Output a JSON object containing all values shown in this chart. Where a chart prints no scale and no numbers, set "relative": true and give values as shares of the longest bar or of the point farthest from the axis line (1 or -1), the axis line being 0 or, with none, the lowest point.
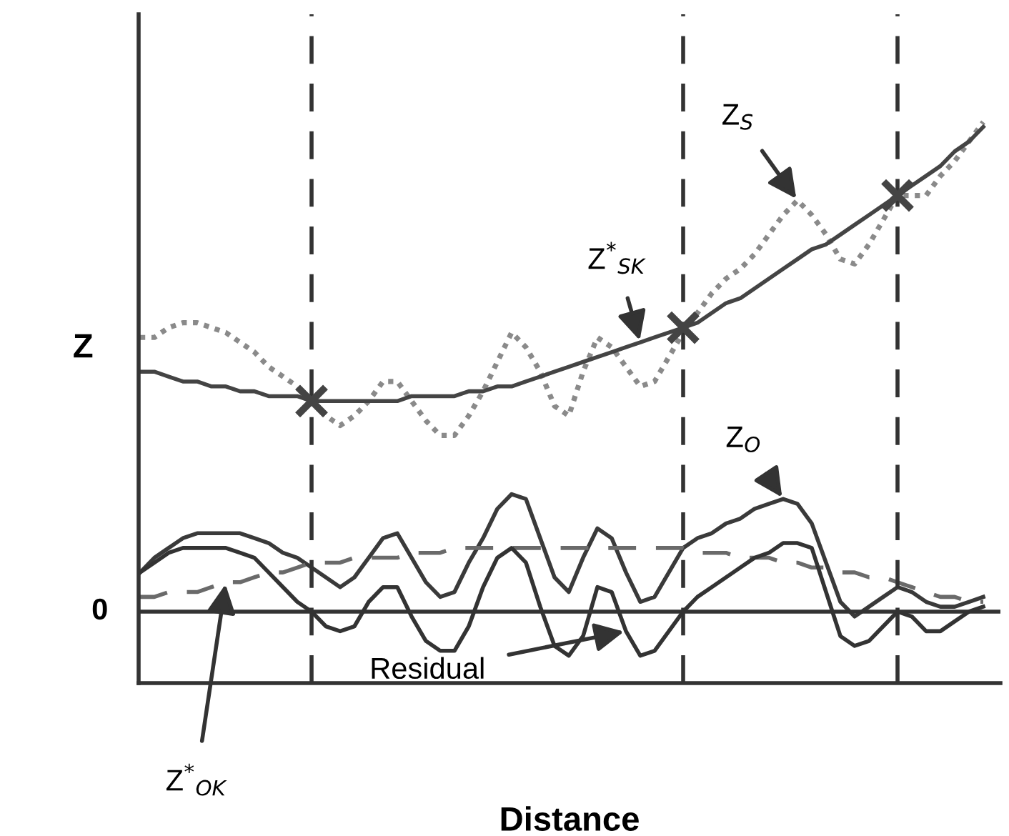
{
  "chart_data": {
    "type": "line",
    "relative": true,
    "xlabel": "Distance",
    "ylabel": "Z",
    "grid": "x",
    "categories": [
      null,
      null,
      null,
      null,
      null,
      null,
      null,
      null,
      null,
      null,
      null,
      null,
      null,
      null,
      null,
      null,
      null,
      null,
      null,
      null,
      null,
      null,
      null,
      null,
      null,
      null,
      null,
      null,
      null,
      null,
      null,
      null,
      null,
      null,
      null,
      null,
      null,
      null,
      null,
      null,
      null,
      null,
      null,
      null,
      null,
      null,
      null,
      null,
      null,
      null,
      null,
      null,
      null,
      null,
      null,
      null,
      null,
      null,
      null,
      null
    ],
    "series": [
      {
        "name": "Z$_{S}$",
        "color": "#8a8a8a",
        "line_style": "dotted",
        "values": [
          0.56,
          0.56,
          0.58,
          0.59,
          0.59,
          0.58,
          0.57,
          0.55,
          0.53,
          0.5,
          0.48,
          0.46,
          0.43,
          0.4,
          0.38,
          0.4,
          0.43,
          0.47,
          0.47,
          0.43,
          0.39,
          0.36,
          0.36,
          0.4,
          0.45,
          0.51,
          0.57,
          0.54,
          0.49,
          0.42,
          0.4,
          0.49,
          0.56,
          0.54,
          0.5,
          0.46,
          0.47,
          0.52,
          0.57,
          0.61,
          0.65,
          0.68,
          0.7,
          0.73,
          0.77,
          0.81,
          0.84,
          0.81,
          0.77,
          0.72,
          0.71,
          0.75,
          0.8,
          0.85,
          0.85,
          0.85,
          0.89,
          0.92,
          0.96,
          1
        ]
      },
      {
        "name": "Z$^{*}$$_{SK}$",
        "color": "#444444",
        "line_style": "solid",
        "values": [
          0.49,
          0.49,
          0.48,
          0.47,
          0.47,
          0.46,
          0.46,
          0.45,
          0.45,
          0.44,
          0.44,
          0.44,
          0.43,
          0.43,
          0.43,
          0.43,
          0.43,
          0.43,
          0.43,
          0.44,
          0.44,
          0.44,
          0.44,
          0.45,
          0.45,
          0.46,
          0.46,
          0.47,
          0.48,
          0.49,
          0.5,
          0.51,
          0.52,
          0.53,
          0.54,
          0.55,
          0.56,
          0.57,
          0.58,
          0.59,
          0.61,
          0.63,
          0.64,
          0.66,
          0.68,
          0.7,
          0.72,
          0.74,
          0.75,
          0.77,
          0.79,
          0.81,
          0.83,
          0.85,
          0.87,
          0.89,
          0.91,
          0.94,
          0.96,
          0.99
        ]
      },
      {
        "name": "Z$_{O}$",
        "color": "#3a3a3a",
        "line_style": "solid",
        "values": [
          0.08,
          0.11,
          0.13,
          0.15,
          0.16,
          0.16,
          0.16,
          0.16,
          0.15,
          0.14,
          0.12,
          0.11,
          0.09,
          0.07,
          0.05,
          0.07,
          0.11,
          0.15,
          0.16,
          0.11,
          0.06,
          0.03,
          0.04,
          0.1,
          0.15,
          0.21,
          0.24,
          0.23,
          0.15,
          0.07,
          0.04,
          0.11,
          0.17,
          0.15,
          0.08,
          0.02,
          0.03,
          0.08,
          0.13,
          0.15,
          0.16,
          0.18,
          0.19,
          0.21,
          0.22,
          0.23,
          0.22,
          0.18,
          0.1,
          0.02,
          -0.01,
          0.01,
          0.03,
          0.05,
          0.04,
          0.02,
          0.01,
          0.01,
          0.02,
          0.03
        ]
      },
      {
        "name": "Z$^{*}$$_{OK}$",
        "color": "#6a6a6a",
        "line_style": "dashed",
        "values": [
          0.03,
          0.03,
          0.04,
          0.04,
          0.04,
          0.05,
          0.06,
          0.06,
          0.07,
          0.08,
          0.08,
          0.09,
          0.1,
          0.1,
          0.1,
          0.11,
          0.11,
          0.11,
          0.11,
          0.12,
          0.12,
          0.12,
          0.13,
          0.13,
          0.13,
          0.13,
          0.13,
          0.13,
          0.13,
          0.13,
          0.13,
          0.13,
          0.13,
          0.13,
          0.13,
          0.13,
          0.13,
          0.13,
          0.13,
          0.12,
          0.12,
          0.12,
          0.11,
          0.11,
          0.11,
          0.1,
          0.1,
          0.09,
          0.09,
          0.08,
          0.08,
          0.07,
          0.07,
          0.06,
          0.05,
          0.04,
          0.03,
          0.03,
          0.02,
          0.02
        ]
      },
      {
        "name": "Residual",
        "color": "#333333",
        "line_style": "solid",
        "values": [
          0.08,
          0.1,
          0.12,
          0.13,
          0.13,
          0.13,
          0.13,
          0.12,
          0.11,
          0.08,
          0.05,
          0.02,
          0.0,
          -0.03,
          -0.04,
          -0.03,
          0.02,
          0.05,
          0.05,
          -0.01,
          -0.06,
          -0.08,
          -0.08,
          -0.03,
          0.05,
          0.11,
          0.13,
          0.1,
          0.01,
          -0.07,
          -0.09,
          -0.05,
          0.05,
          0.04,
          -0.04,
          -0.09,
          -0.08,
          -0.04,
          0.0,
          0.03,
          0.05,
          0.07,
          0.09,
          0.11,
          0.12,
          0.14,
          0.14,
          0.13,
          0.04,
          -0.05,
          -0.07,
          -0.06,
          -0.03,
          0.0,
          -0.01,
          -0.04,
          -0.04,
          -0.02,
          0,
          0.01
        ]
      }
    ],
    "ref_lines": [
      {
        "axis": "y",
        "value": 0,
        "label": "0",
        "color": "#333333",
        "line_style": "solid"
      }
    ]
  }
}
